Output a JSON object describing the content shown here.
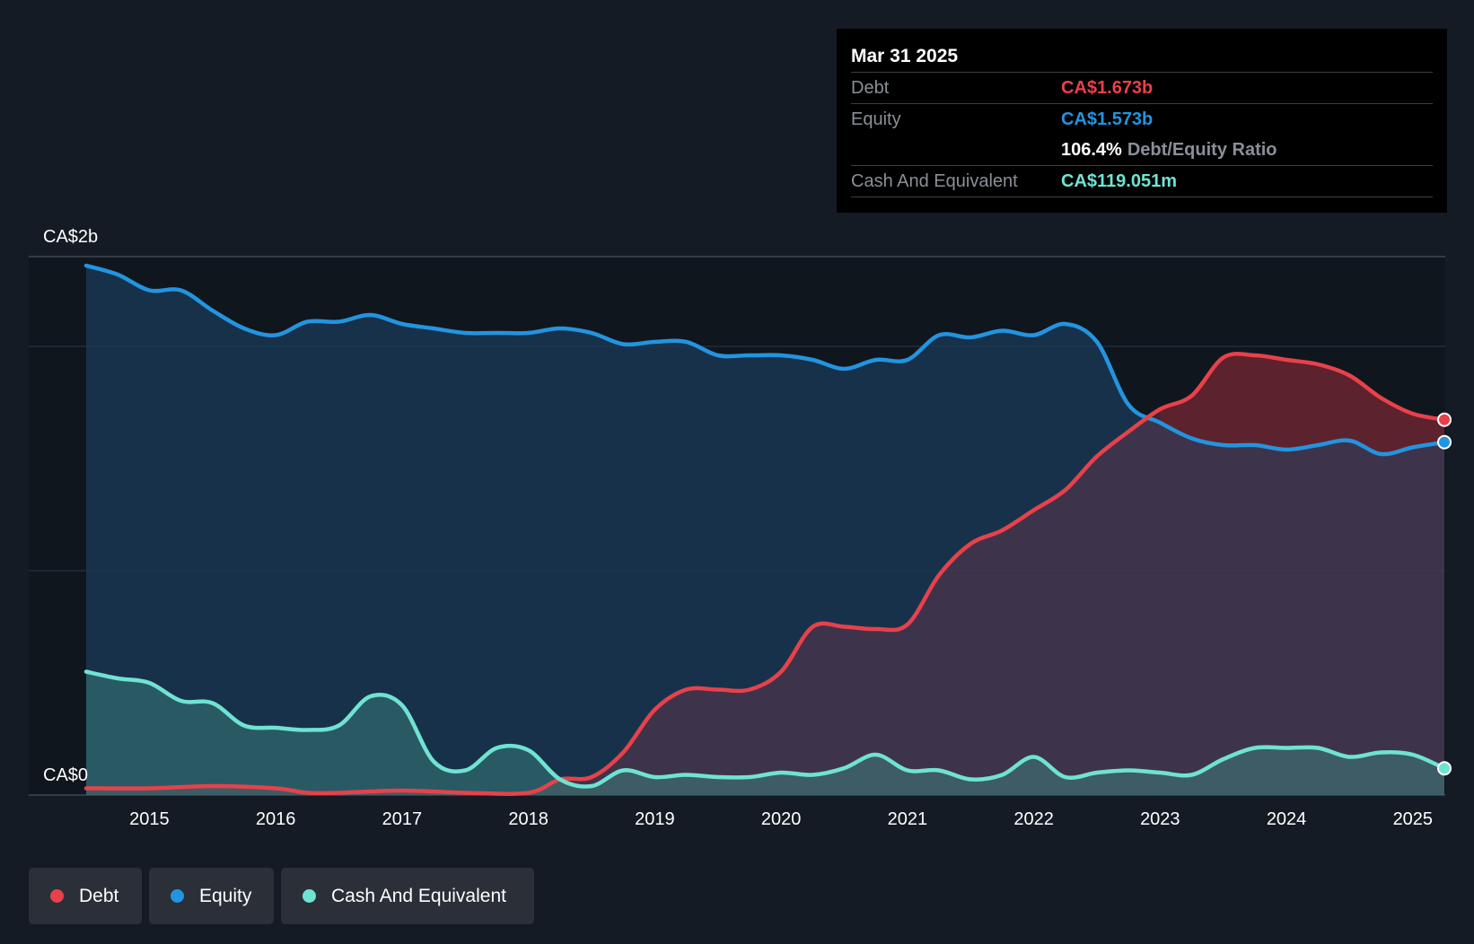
{
  "colors": {
    "debt": "#e8414a",
    "equity": "#2394df",
    "cash": "#6fe3d2",
    "background": "#151b24",
    "plot_background": "#10161e",
    "grid": "#2f3640"
  },
  "tooltip": {
    "date": "Mar 31 2025",
    "debt_label": "Debt",
    "debt_value": "CA$1.673b",
    "equity_label": "Equity",
    "equity_value": "CA$1.573b",
    "ratio_value": "106.4%",
    "ratio_label": "Debt/Equity Ratio",
    "cash_label": "Cash And Equivalent",
    "cash_value": "CA$119.051m"
  },
  "legend": {
    "debt": "Debt",
    "equity": "Equity",
    "cash": "Cash And Equivalent"
  },
  "chart_data": {
    "type": "area",
    "title": "",
    "y_unit": "CA$ billions",
    "ylim": [
      0,
      2.4
    ],
    "xlim": [
      2014.5,
      2025.25
    ],
    "y_tick_labels": [
      {
        "value": 2.4,
        "label": "CA$2b"
      },
      {
        "value": 0,
        "label": "CA$0"
      }
    ],
    "gridlines_y": [
      2.0,
      1.0
    ],
    "x_ticks": [
      2015,
      2016,
      2017,
      2018,
      2019,
      2020,
      2021,
      2022,
      2023,
      2024,
      2025
    ],
    "x_tick_labels": [
      "2015",
      "2016",
      "2017",
      "2018",
      "2019",
      "2020",
      "2021",
      "2022",
      "2023",
      "2024",
      "2025"
    ],
    "series": [
      {
        "name": "Equity",
        "key": "equity",
        "points": [
          [
            2014.5,
            2.36
          ],
          [
            2014.75,
            2.32
          ],
          [
            2015,
            2.25
          ],
          [
            2015.25,
            2.25
          ],
          [
            2015.5,
            2.16
          ],
          [
            2015.75,
            2.08
          ],
          [
            2016,
            2.05
          ],
          [
            2016.25,
            2.11
          ],
          [
            2016.5,
            2.11
          ],
          [
            2016.75,
            2.14
          ],
          [
            2017,
            2.1
          ],
          [
            2017.25,
            2.08
          ],
          [
            2017.5,
            2.06
          ],
          [
            2017.75,
            2.06
          ],
          [
            2018,
            2.06
          ],
          [
            2018.25,
            2.08
          ],
          [
            2018.5,
            2.06
          ],
          [
            2018.75,
            2.01
          ],
          [
            2019,
            2.02
          ],
          [
            2019.25,
            2.02
          ],
          [
            2019.5,
            1.96
          ],
          [
            2019.75,
            1.96
          ],
          [
            2020,
            1.96
          ],
          [
            2020.25,
            1.94
          ],
          [
            2020.5,
            1.9
          ],
          [
            2020.75,
            1.94
          ],
          [
            2021,
            1.94
          ],
          [
            2021.25,
            2.05
          ],
          [
            2021.5,
            2.04
          ],
          [
            2021.75,
            2.07
          ],
          [
            2022,
            2.05
          ],
          [
            2022.25,
            2.1
          ],
          [
            2022.5,
            2.02
          ],
          [
            2022.75,
            1.74
          ],
          [
            2023,
            1.66
          ],
          [
            2023.25,
            1.59
          ],
          [
            2023.5,
            1.56
          ],
          [
            2023.75,
            1.56
          ],
          [
            2024,
            1.54
          ],
          [
            2024.25,
            1.56
          ],
          [
            2024.5,
            1.58
          ],
          [
            2024.75,
            1.52
          ],
          [
            2025,
            1.55
          ],
          [
            2025.25,
            1.573
          ]
        ]
      },
      {
        "name": "Debt",
        "key": "debt",
        "points": [
          [
            2014.5,
            0.03
          ],
          [
            2015,
            0.03
          ],
          [
            2015.5,
            0.04
          ],
          [
            2016,
            0.03
          ],
          [
            2016.25,
            0.01
          ],
          [
            2016.5,
            0.01
          ],
          [
            2017,
            0.02
          ],
          [
            2017.5,
            0.01
          ],
          [
            2018,
            0.01
          ],
          [
            2018.25,
            0.07
          ],
          [
            2018.5,
            0.08
          ],
          [
            2018.75,
            0.19
          ],
          [
            2019,
            0.38
          ],
          [
            2019.25,
            0.47
          ],
          [
            2019.5,
            0.47
          ],
          [
            2019.75,
            0.47
          ],
          [
            2020,
            0.55
          ],
          [
            2020.25,
            0.75
          ],
          [
            2020.5,
            0.75
          ],
          [
            2020.75,
            0.74
          ],
          [
            2021,
            0.76
          ],
          [
            2021.25,
            0.98
          ],
          [
            2021.5,
            1.12
          ],
          [
            2021.75,
            1.18
          ],
          [
            2022,
            1.27
          ],
          [
            2022.25,
            1.36
          ],
          [
            2022.5,
            1.51
          ],
          [
            2022.75,
            1.62
          ],
          [
            2023,
            1.72
          ],
          [
            2023.25,
            1.78
          ],
          [
            2023.5,
            1.95
          ],
          [
            2023.75,
            1.96
          ],
          [
            2024,
            1.94
          ],
          [
            2024.25,
            1.92
          ],
          [
            2024.5,
            1.87
          ],
          [
            2024.75,
            1.77
          ],
          [
            2025,
            1.7
          ],
          [
            2025.25,
            1.673
          ]
        ]
      },
      {
        "name": "Cash And Equivalent",
        "key": "cash",
        "points": [
          [
            2014.5,
            0.55
          ],
          [
            2014.75,
            0.52
          ],
          [
            2015,
            0.5
          ],
          [
            2015.25,
            0.42
          ],
          [
            2015.5,
            0.41
          ],
          [
            2015.75,
            0.31
          ],
          [
            2016,
            0.3
          ],
          [
            2016.25,
            0.29
          ],
          [
            2016.5,
            0.31
          ],
          [
            2016.75,
            0.44
          ],
          [
            2017,
            0.4
          ],
          [
            2017.25,
            0.15
          ],
          [
            2017.5,
            0.11
          ],
          [
            2017.75,
            0.21
          ],
          [
            2018,
            0.2
          ],
          [
            2018.25,
            0.07
          ],
          [
            2018.5,
            0.04
          ],
          [
            2018.75,
            0.11
          ],
          [
            2019,
            0.08
          ],
          [
            2019.25,
            0.09
          ],
          [
            2019.5,
            0.08
          ],
          [
            2019.75,
            0.08
          ],
          [
            2020,
            0.1
          ],
          [
            2020.25,
            0.09
          ],
          [
            2020.5,
            0.12
          ],
          [
            2020.75,
            0.18
          ],
          [
            2021,
            0.11
          ],
          [
            2021.25,
            0.11
          ],
          [
            2021.5,
            0.07
          ],
          [
            2021.75,
            0.09
          ],
          [
            2022,
            0.17
          ],
          [
            2022.25,
            0.08
          ],
          [
            2022.5,
            0.1
          ],
          [
            2022.75,
            0.11
          ],
          [
            2023,
            0.1
          ],
          [
            2023.25,
            0.09
          ],
          [
            2023.5,
            0.16
          ],
          [
            2023.75,
            0.21
          ],
          [
            2024,
            0.21
          ],
          [
            2024.25,
            0.21
          ],
          [
            2024.5,
            0.17
          ],
          [
            2024.75,
            0.19
          ],
          [
            2025,
            0.18
          ],
          [
            2025.25,
            0.119
          ]
        ]
      }
    ]
  }
}
